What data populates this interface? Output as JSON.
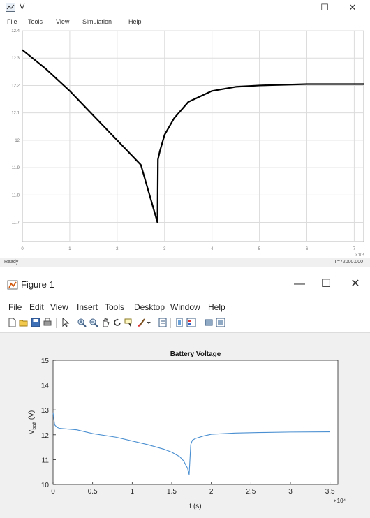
{
  "scope": {
    "title": "V",
    "menu": [
      "File",
      "Tools",
      "View",
      "Simulation",
      "Help"
    ],
    "status_left": "Ready",
    "status_right": "T=72000.000",
    "x_ticks": [
      "0",
      "1",
      "2",
      "3",
      "4",
      "5",
      "6",
      "7"
    ],
    "x_exponent": "×10⁴",
    "y_ticks": [
      "11.7",
      "11.8",
      "11.9",
      "12",
      "12.1",
      "12.2",
      "12.3",
      "12.4"
    ]
  },
  "figure": {
    "title": "Figure 1",
    "menu": [
      "File",
      "Edit",
      "View",
      "Insert",
      "Tools",
      "Desktop",
      "Window",
      "Help"
    ],
    "plot_title": "Battery Voltage",
    "ylabel_main": "V",
    "ylabel_sub": "batt",
    "ylabel_unit": " (V)",
    "xlabel": "t (s)",
    "x_ticks": [
      "0",
      "0.5",
      "1",
      "1.5",
      "2",
      "2.5",
      "3",
      "3.5"
    ],
    "x_exponent": "×10⁴",
    "y_ticks": [
      "10",
      "11",
      "12",
      "13",
      "14",
      "15"
    ],
    "toolbar_icons": [
      "new-file-icon",
      "open-file-icon",
      "save-icon",
      "print-icon",
      "pointer-icon",
      "zoom-in-icon",
      "zoom-out-icon",
      "pan-icon",
      "rotate-icon",
      "data-cursor-icon",
      "brush-icon",
      "link-icon",
      "colorbar-icon",
      "legend-icon",
      "hide-plot-tools-icon",
      "show-plot-tools-icon"
    ]
  },
  "window_controls": {
    "minimize": "—",
    "maximize": "☐",
    "close": "✕"
  },
  "chart_data": [
    {
      "type": "line",
      "title": "",
      "xlabel": "",
      "ylabel": "",
      "x": [
        0,
        0.5,
        1,
        1.5,
        2,
        2.5,
        2.85,
        2.86,
        2.9,
        3,
        3.2,
        3.5,
        4,
        4.5,
        5,
        6,
        7,
        7.2
      ],
      "series": [
        {
          "values": [
            12.33,
            12.26,
            12.18,
            12.09,
            12.0,
            11.91,
            11.7,
            11.93,
            11.96,
            12.02,
            12.08,
            12.14,
            12.18,
            12.195,
            12.2,
            12.205,
            12.205,
            12.205
          ],
          "color": "#000000"
        }
      ],
      "xlim": [
        0,
        7.2
      ],
      "ylim": [
        11.63,
        12.4
      ],
      "x_scale_label": "×10⁴",
      "grid": true
    },
    {
      "type": "line",
      "title": "Battery Voltage",
      "xlabel": "t (s)",
      "ylabel": "Vbatt (V)",
      "x": [
        0,
        0.02,
        0.05,
        0.08,
        0.3,
        0.5,
        0.8,
        1.0,
        1.2,
        1.4,
        1.5,
        1.6,
        1.65,
        1.7,
        1.72,
        1.74,
        1.76,
        1.8,
        1.9,
        2.0,
        2.3,
        2.6,
        3.0,
        3.5
      ],
      "series": [
        {
          "values": [
            12.9,
            12.4,
            12.3,
            12.26,
            12.2,
            12.05,
            11.9,
            11.75,
            11.6,
            11.42,
            11.3,
            11.12,
            10.95,
            10.65,
            10.4,
            11.6,
            11.78,
            11.85,
            11.95,
            12.02,
            12.07,
            12.09,
            12.11,
            12.12
          ],
          "color": "#4a8fd1"
        }
      ],
      "xlim": [
        0,
        3.6
      ],
      "ylim": [
        10,
        15
      ],
      "x_scale_label": "×10⁴",
      "grid": false
    }
  ]
}
